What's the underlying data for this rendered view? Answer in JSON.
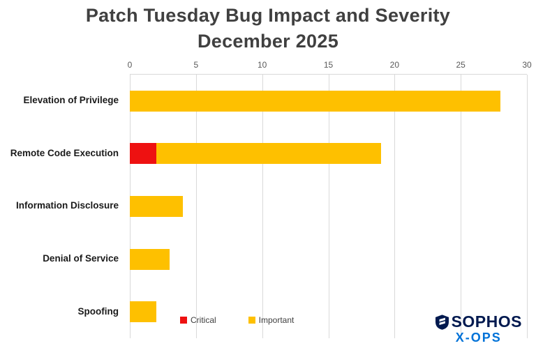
{
  "title": {
    "line1": "Patch Tuesday Bug Impact and Severity",
    "line2": "December 2025"
  },
  "chart_data": {
    "type": "bar",
    "orientation": "horizontal",
    "stacked": true,
    "title": "Patch Tuesday Bug Impact and Severity December 2025",
    "categories": [
      "Elevation of Privilege",
      "Remote Code Execution",
      "Information Disclosure",
      "Denial of Service",
      "Spoofing"
    ],
    "series": [
      {
        "name": "Critical",
        "color": "#ee1111",
        "values": [
          0,
          2,
          0,
          0,
          0
        ]
      },
      {
        "name": "Important",
        "color": "#fec000",
        "values": [
          28,
          17,
          4,
          3,
          2
        ]
      }
    ],
    "totals": [
      28,
      19,
      4,
      3,
      2
    ],
    "xlim": [
      0,
      30
    ],
    "xticks": [
      0,
      5,
      10,
      15,
      20,
      25,
      30
    ],
    "grid": true,
    "axis_position": "top",
    "legend_position": "bottom"
  },
  "legend": {
    "items": [
      {
        "label": "Critical",
        "color": "#ee1111"
      },
      {
        "label": "Important",
        "color": "#fec000"
      }
    ]
  },
  "logo": {
    "brand": "SOPHOS",
    "sub_brand": "X-OPS",
    "brand_color": "#00194f",
    "sub_color": "#0072d8"
  },
  "colors": {
    "title_text": "#404040",
    "axis_text": "#595959",
    "gridline": "#d9d9d9",
    "category_text": "#1a1a1a",
    "background": "#ffffff"
  }
}
